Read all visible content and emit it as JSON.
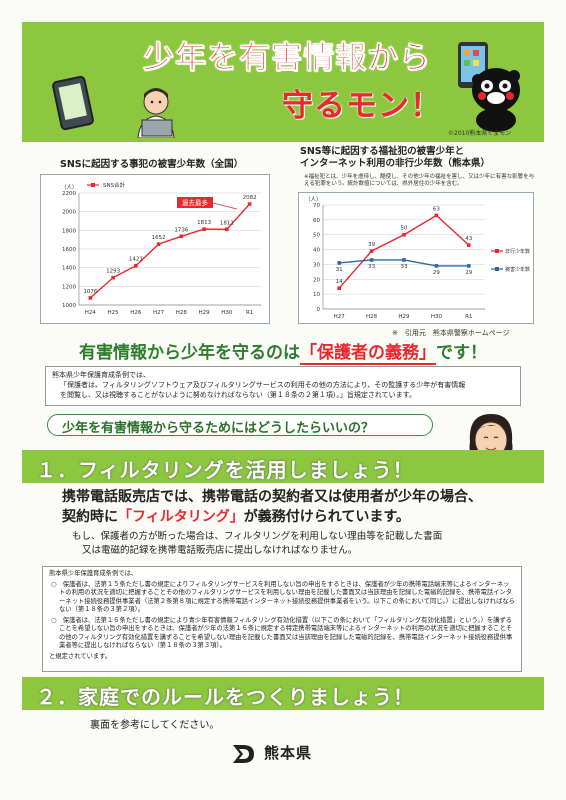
{
  "header": {
    "title_line1": "少年を有害情報から",
    "title_line2": "守るモン！",
    "copyright": "©2010熊本県くまモン",
    "bg_color": "#8dc63f",
    "title_color": "#e8282d"
  },
  "chart_data": [
    {
      "type": "line",
      "title": "SNSに起因する事犯の被害少年数（全国）",
      "ylabel": "（人）",
      "categories": [
        "H24",
        "H25",
        "H26",
        "H27",
        "H28",
        "H29",
        "H30",
        "R1"
      ],
      "series": [
        {
          "name": "SNS合計",
          "values": [
            1076,
            1293,
            1421,
            1652,
            1736,
            1813,
            1811,
            2082
          ]
        }
      ],
      "ylim": [
        1000,
        2200
      ],
      "yticks": [
        1000,
        1200,
        1400,
        1600,
        1800,
        2000,
        2200
      ],
      "annotation": "過去最多",
      "legend": "top-left",
      "grid": true
    },
    {
      "type": "line",
      "title": "SNS等に起因する福祉犯の被害少年と\nインターネット利用の非行少年数（熊本県）",
      "note": "※福祉犯とは、少年を虐待し、酷使し、その他少年の福祉を害し、又は少年に有害な影響を与える犯罪をいう。統計数値については、県外居住の少年を含む。",
      "ylabel": "（人）",
      "categories": [
        "H27",
        "H28",
        "H29",
        "H30",
        "R1"
      ],
      "series": [
        {
          "name": "非行少年数",
          "values": [
            14,
            39,
            50,
            63,
            43
          ],
          "color": "#e8282d"
        },
        {
          "name": "被害少年数",
          "values": [
            31,
            33,
            33,
            29,
            29
          ],
          "color": "#2c6aa0"
        }
      ],
      "ylim": [
        0,
        70
      ],
      "yticks": [
        0,
        10,
        20,
        30,
        40,
        50,
        60,
        70
      ],
      "legend": "right",
      "grid": true
    }
  ],
  "source": "※　引用元　熊本県警察ホームページ",
  "banner": {
    "pre": "有害情報から少年を守るのは",
    "highlight": "「保護者の義務」",
    "post": "です！"
  },
  "law1": {
    "line1": "熊本県少年保護育成条例では、",
    "line2": "「保護者は、フィルタリングソフトウェア及びフィルタリングサービスの利用その他の方法により、その監護する少年が有害情報",
    "line3": "を閲覧し、又は視聴することがないように努めなければならない（第１８条の２第１項）。」旨規定されています。"
  },
  "question": "少年を有害情報から守るためにはどうしたらいいの？",
  "section1": "１．フィルタリングを活用しましょう！",
  "main_text": {
    "line1": "携帯電話販売店では、携帯電話の契約者又は使用者が少年の場合、",
    "line2_pre": "契約時に",
    "line2_hl": "「フィルタリング」",
    "line2_post": "が義務付けられています。"
  },
  "sub_text": {
    "line1": "もし、保護者の方が断った場合は、フィルタリングを利用しない理由等を記載した書面",
    "line2": "又は電磁的記録を携帯電話販売店に提出しなければなりません。"
  },
  "law2": {
    "title": "熊本県少年保護育成条例では、",
    "b1": "○　保護者は、法第１５条ただし書の規定によりフィルタリングサービスを利用しない旨の申出をするときは、保護者が少年の携帯電話端末等によるインターネットの利用の状況を適切に把握することその他のフィルタリングサービスを利用しない理由を記載した書面又は当該理由を記録した電磁的記録を、携帯電話インターネット接続役務提供事業者（法第２条第８項に規定する携帯電話インターネット接続役務提供事業者をいう。以下この条において同じ。）に提出しなければならない（第１８条の３第２項）。",
    "b2": "○　保護者は、法第１６条ただし書の規定により青少年有害情報フィルタリング有効化措置（以下この条において「フィルタリング有効化措置」という。）を講ずることを希望しない旨の申出をするときは、保護者が少年の法第１６条に規定する特定携帯電話端末等によるインターネットの利用の状況を適切に把握することその他のフィルタリング有効化措置を講ずることを希望しない理由を記載した書面又は当該理由を記録した電磁的記録を、携帯電話インターネット接続役務提供事業者等に提出しなければならない（第１８条の３第３項）。",
    "end": "と規定されています。"
  },
  "section2": "２．家庭でのルールをつくりましょう！",
  "ref": "裏面を参考にしてください。",
  "footer": {
    "prefecture": "熊本県"
  }
}
